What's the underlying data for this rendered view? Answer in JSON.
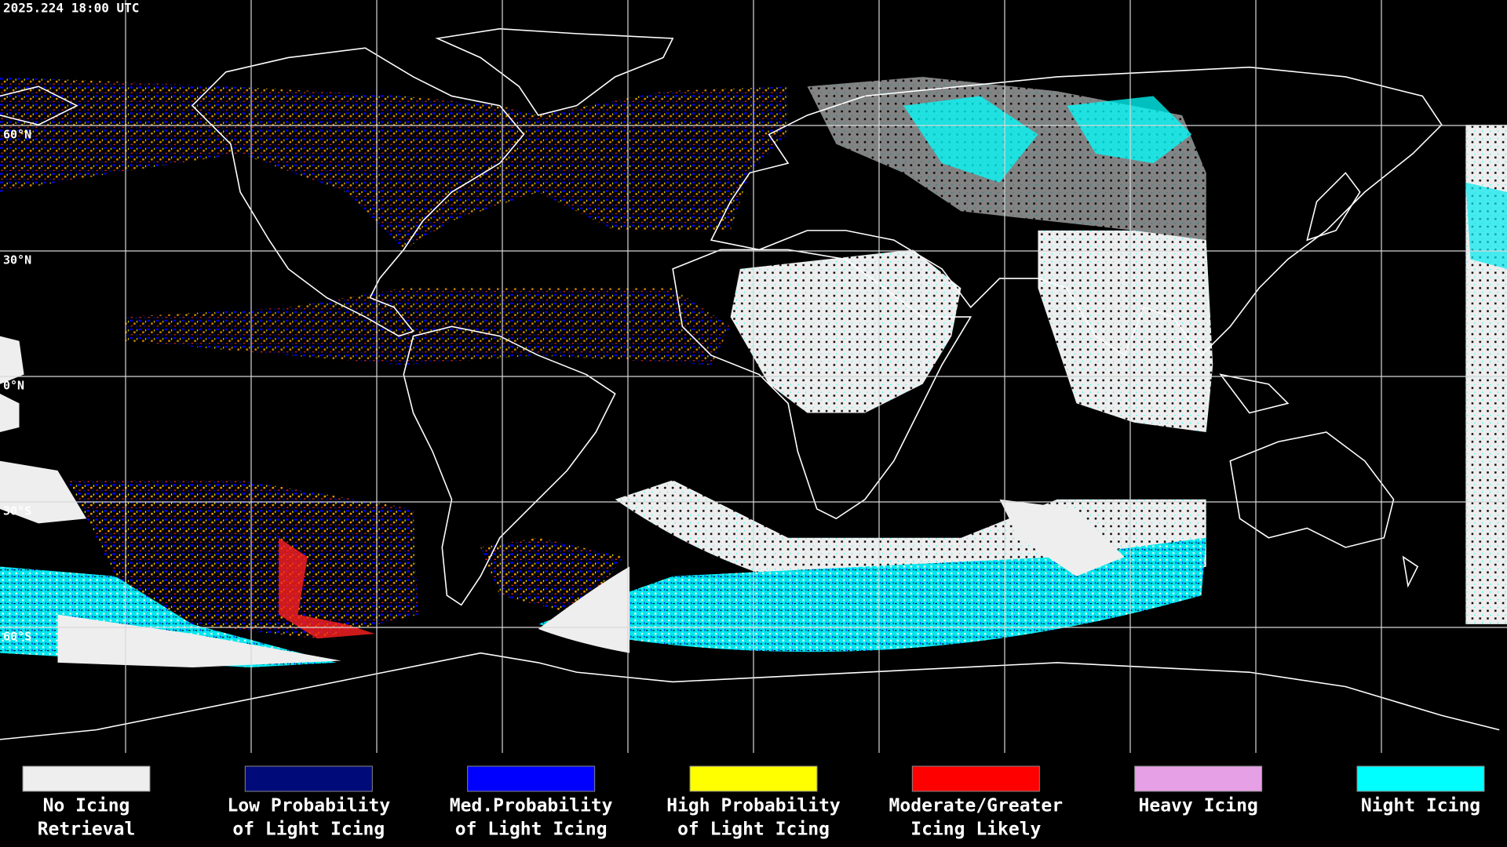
{
  "header": {
    "timestamp": "2025.224 18:00 UTC"
  },
  "map": {
    "latitude_labels": [
      "60°N",
      "30°N",
      "0°N",
      "30°S",
      "60°S"
    ]
  },
  "legend": [
    {
      "label_lines": [
        "No Icing",
        "Retrieval"
      ],
      "color": "#eeeeee"
    },
    {
      "label_lines": [
        "Low Probability",
        "of Light Icing"
      ],
      "color": "#000a78"
    },
    {
      "label_lines": [
        "Med.Probability",
        "of Light Icing"
      ],
      "color": "#0000ff"
    },
    {
      "label_lines": [
        "High Probability",
        "of Light Icing"
      ],
      "color": "#ffff00"
    },
    {
      "label_lines": [
        "Moderate/Greater",
        "Icing Likely"
      ],
      "color": "#ff0000"
    },
    {
      "label_lines": [
        "Heavy Icing"
      ],
      "color": "#e6a0e6"
    },
    {
      "label_lines": [
        "Night Icing"
      ],
      "color": "#00ffff"
    }
  ]
}
